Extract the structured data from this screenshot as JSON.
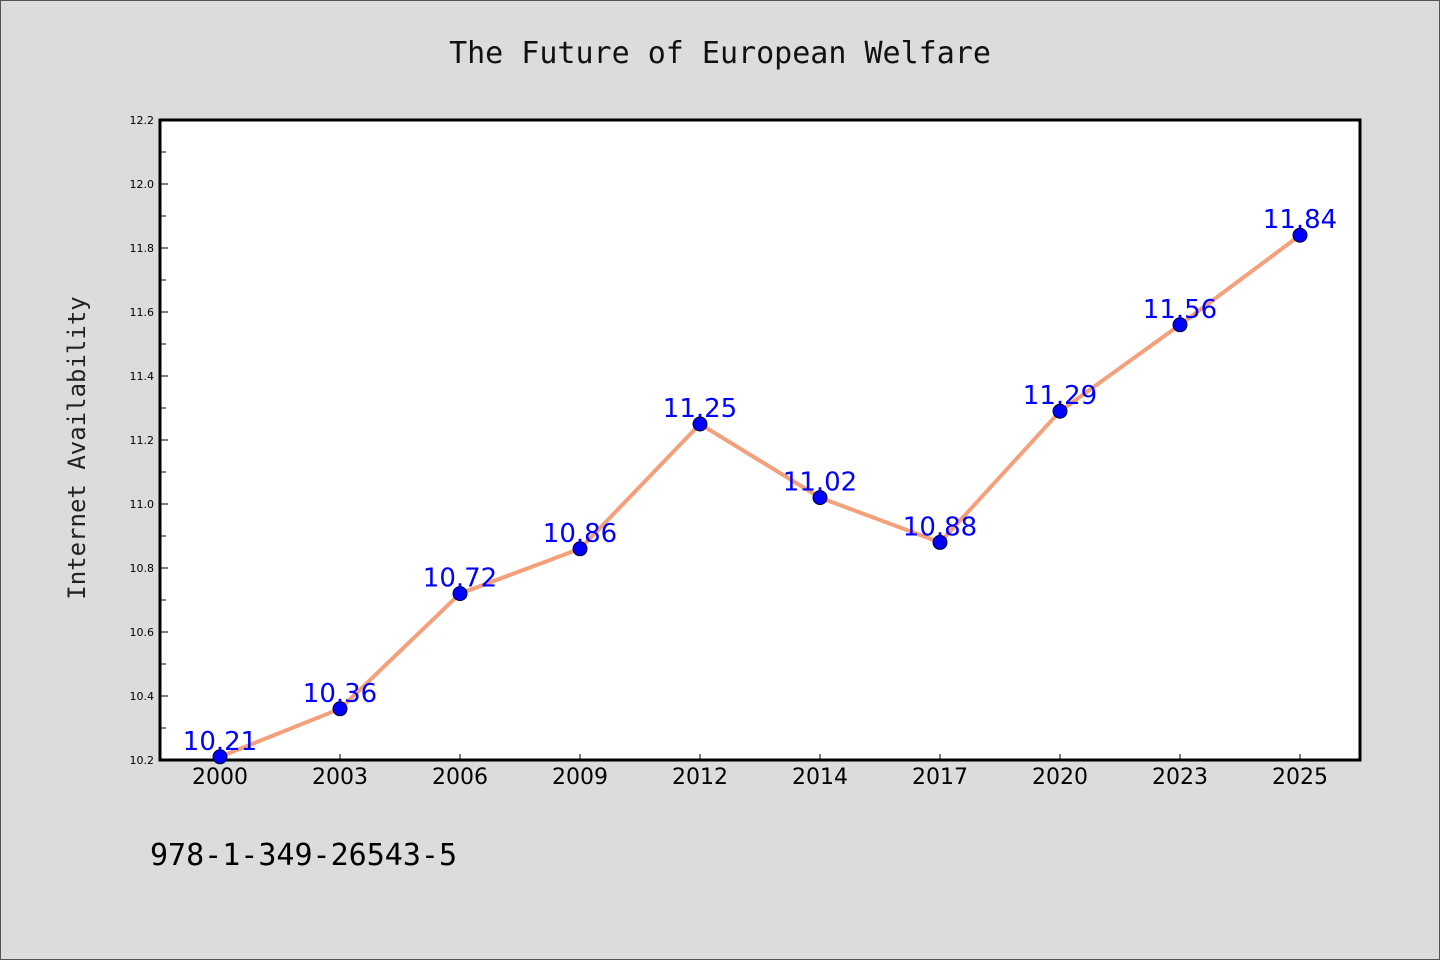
{
  "chart_data": {
    "type": "line",
    "title": "The Future of European Welfare",
    "xlabel": "",
    "ylabel": "Internet Availability",
    "categories": [
      "2000",
      "2003",
      "2006",
      "2009",
      "2012",
      "2014",
      "2017",
      "2020",
      "2023",
      "2025"
    ],
    "values": [
      10.21,
      10.36,
      10.72,
      10.86,
      11.25,
      11.02,
      10.88,
      11.29,
      11.56,
      11.84
    ],
    "data_labels": [
      "10.21",
      "10.36",
      "10.72",
      "10.86",
      "11.25",
      "11.02",
      "10.88",
      "11.29",
      "11.56",
      "11.84"
    ],
    "ylim": [
      10.2,
      12.2
    ],
    "yticks": [
      "10.2",
      "10.4",
      "10.6",
      "10.8",
      "11.0",
      "11.2",
      "11.4",
      "11.6",
      "11.8",
      "12.0",
      "12.2"
    ],
    "grid": false,
    "line_color": "#f4a07a",
    "marker_color": "#0000ff",
    "label_color": "#0000ff"
  },
  "footer": {
    "isbn": "978-1-349-26543-5"
  }
}
